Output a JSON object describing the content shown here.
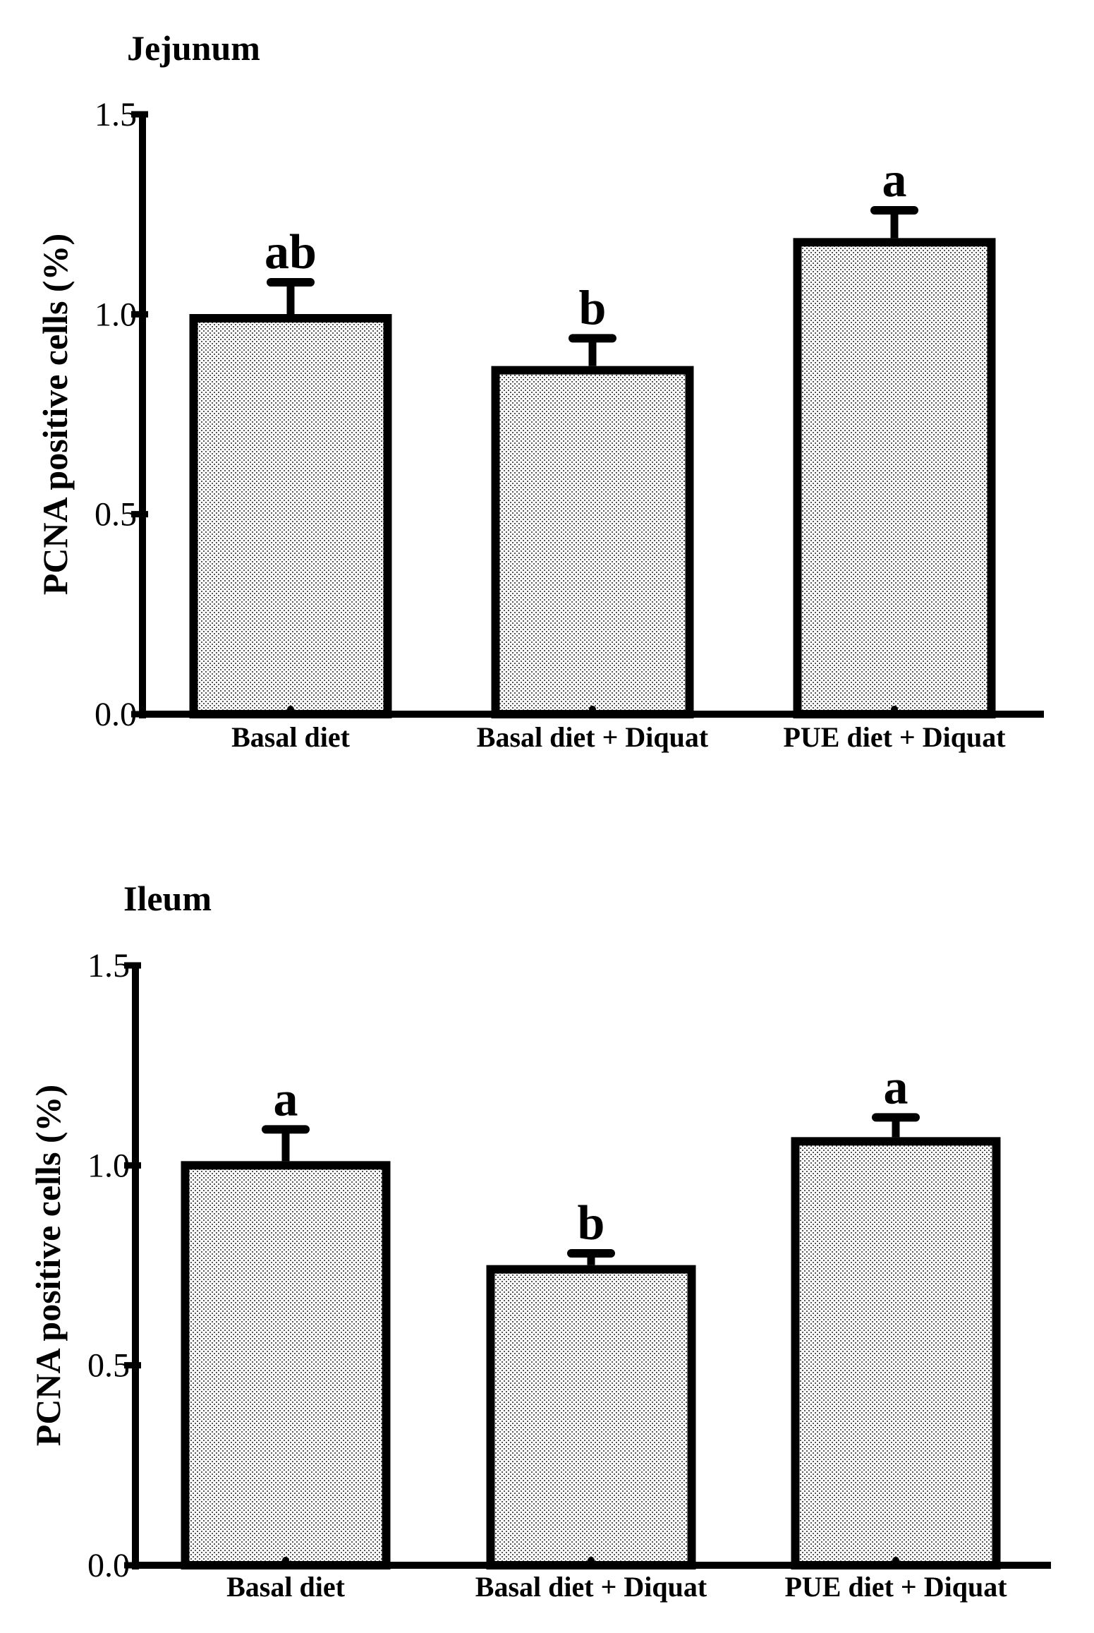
{
  "chart_data": [
    {
      "type": "bar",
      "title": "Jejunum",
      "xlabel": "",
      "ylabel": "PCNA positive cells (%)",
      "ylim": [
        0,
        1.5
      ],
      "yticks": [
        "0.0",
        "0.5",
        "1.0",
        "1.5"
      ],
      "categories": [
        "Basal diet",
        "Basal diet + Diquat",
        "PUE diet + Diquat"
      ],
      "values": [
        0.99,
        0.86,
        1.18
      ],
      "errors": [
        0.09,
        0.08,
        0.08
      ],
      "significance": [
        "ab",
        "b",
        "a"
      ]
    },
    {
      "type": "bar",
      "title": "Ileum",
      "xlabel": "",
      "ylabel": "PCNA positive cells (%)",
      "ylim": [
        0,
        1.5
      ],
      "yticks": [
        "0.0",
        "0.5",
        "1.0",
        "1.5"
      ],
      "categories": [
        "Basal diet",
        "Basal diet + Diquat",
        "PUE diet + Diquat"
      ],
      "values": [
        1.0,
        0.74,
        1.06
      ],
      "errors": [
        0.09,
        0.04,
        0.06
      ],
      "significance": [
        "a",
        "b",
        "a"
      ]
    }
  ]
}
